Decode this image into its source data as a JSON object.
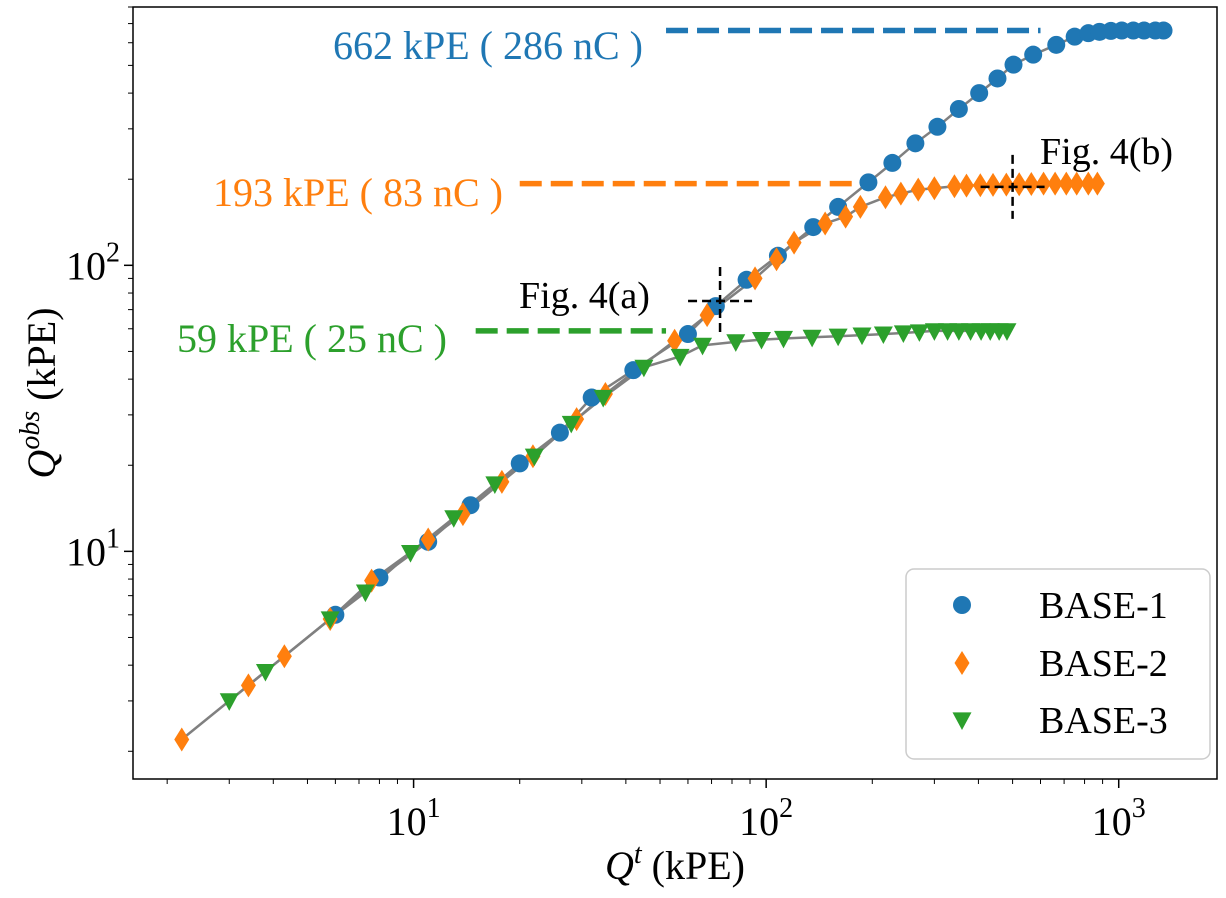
{
  "chart_data": {
    "type": "scatter",
    "xscale": "log",
    "yscale": "log",
    "xlim": [
      1.6,
      1900
    ],
    "ylim": [
      1.6,
      800
    ],
    "xlabel": {
      "main": "Q",
      "sup": "t",
      "unit": " (kPE)"
    },
    "ylabel": {
      "main": "Q",
      "sup": "obs",
      "unit": " (kPE)"
    },
    "x_ticks": [
      {
        "value": 10,
        "base": "10",
        "exp": "1"
      },
      {
        "value": 100,
        "base": "10",
        "exp": "2"
      },
      {
        "value": 1000,
        "base": "10",
        "exp": "3"
      }
    ],
    "y_ticks": [
      {
        "value": 10,
        "base": "10",
        "exp": "1"
      },
      {
        "value": 100,
        "base": "10",
        "exp": "2"
      }
    ],
    "series": [
      {
        "name": "BASE-1",
        "color": "#1f77b4",
        "marker": "circle",
        "x": [
          6.0,
          8.0,
          11.0,
          14.5,
          20.0,
          26.0,
          32.0,
          42.0,
          60.0,
          72.0,
          88.0,
          108.0,
          136.0,
          160.0,
          195.0,
          228.0,
          265.0,
          306.0,
          352.0,
          402.0,
          453.0,
          503.0,
          572.0,
          665.0,
          750.0,
          820.0,
          882.0,
          950.0,
          1020.0,
          1100.0,
          1180.0,
          1270.0,
          1340.0
        ],
        "y": [
          6.0,
          8.1,
          10.8,
          14.5,
          20.3,
          26.0,
          34.5,
          43.0,
          57.5,
          72.0,
          89.0,
          108.0,
          136.0,
          160.0,
          195.0,
          228.0,
          267.0,
          305.0,
          352.0,
          400.0,
          450.0,
          503.0,
          545.0,
          590.0,
          630.0,
          648.0,
          655.0,
          660.0,
          662.0,
          662.0,
          662.0,
          662.0,
          662.0
        ]
      },
      {
        "name": "BASE-2",
        "color": "#ff7f0e",
        "marker": "thin_diamond",
        "x": [
          2.2,
          3.4,
          4.3,
          5.8,
          7.6,
          11.0,
          13.8,
          17.8,
          21.8,
          29.0,
          35.0,
          55.0,
          68.0,
          93.0,
          107.0,
          120.0,
          147.0,
          168.0,
          185.0,
          218.0,
          241.0,
          270.0,
          300.0,
          342.0,
          370.0,
          405.0,
          440.0,
          480.0,
          522.0,
          565.0,
          612.0,
          660.0,
          710.0,
          760.0,
          820.0,
          870.0
        ],
        "y": [
          2.2,
          3.4,
          4.3,
          5.8,
          7.9,
          11.0,
          13.5,
          17.5,
          21.5,
          29.0,
          35.5,
          54.5,
          67.0,
          90.0,
          105.0,
          120.0,
          140.0,
          148.0,
          160.0,
          173.0,
          178.0,
          184.0,
          186.0,
          189.0,
          190.0,
          190.5,
          191.0,
          191.5,
          192.0,
          192.5,
          193.0,
          193.0,
          193.0,
          193.0,
          193.0,
          193.0
        ]
      },
      {
        "name": "BASE-3",
        "color": "#2ca02c",
        "marker": "triangle_down",
        "x": [
          3.0,
          3.8,
          5.8,
          7.3,
          9.8,
          13.0,
          17.0,
          22.0,
          28.0,
          34.5,
          45.0,
          57.0,
          66.0,
          82.0,
          97.0,
          112.0,
          135.0,
          160.0,
          187.0,
          215.0,
          245.0,
          272.0,
          300.0,
          327.0,
          352.0,
          380.0,
          407.0,
          432.0,
          458.0,
          482.0
        ],
        "y": [
          3.0,
          3.8,
          5.8,
          7.2,
          9.9,
          13.1,
          17.2,
          21.5,
          28.0,
          34.5,
          44.0,
          48.0,
          52.5,
          54.0,
          55.0,
          55.5,
          56.0,
          56.5,
          57.0,
          57.5,
          58.0,
          58.5,
          59.0,
          59.0,
          59.0,
          59.0,
          59.0,
          59.0,
          59.0,
          59.0
        ]
      }
    ],
    "fit_curve_color": "#808080",
    "saturation_levels": [
      {
        "label": "662 kPE ( 286 nC )",
        "value": 662,
        "color": "#1f77b4",
        "x_from": 52,
        "x_to": 600
      },
      {
        "label": "193 kPE ( 83 nC )",
        "value": 193,
        "color": "#ff7f0e",
        "x_from": 20,
        "x_to": 175
      },
      {
        "label": "59 kPE ( 25 nC )",
        "value": 59,
        "color": "#2ca02c",
        "x_from": 15,
        "x_to": 52
      }
    ],
    "annotations": [
      {
        "label": "Fig. 4(a)",
        "x": 74,
        "y": 75
      },
      {
        "label": "Fig. 4(b)",
        "x": 500,
        "y": 188
      }
    ],
    "legend": {
      "position": "bottom-right",
      "entries": [
        "BASE-1",
        "BASE-2",
        "BASE-3"
      ]
    }
  }
}
